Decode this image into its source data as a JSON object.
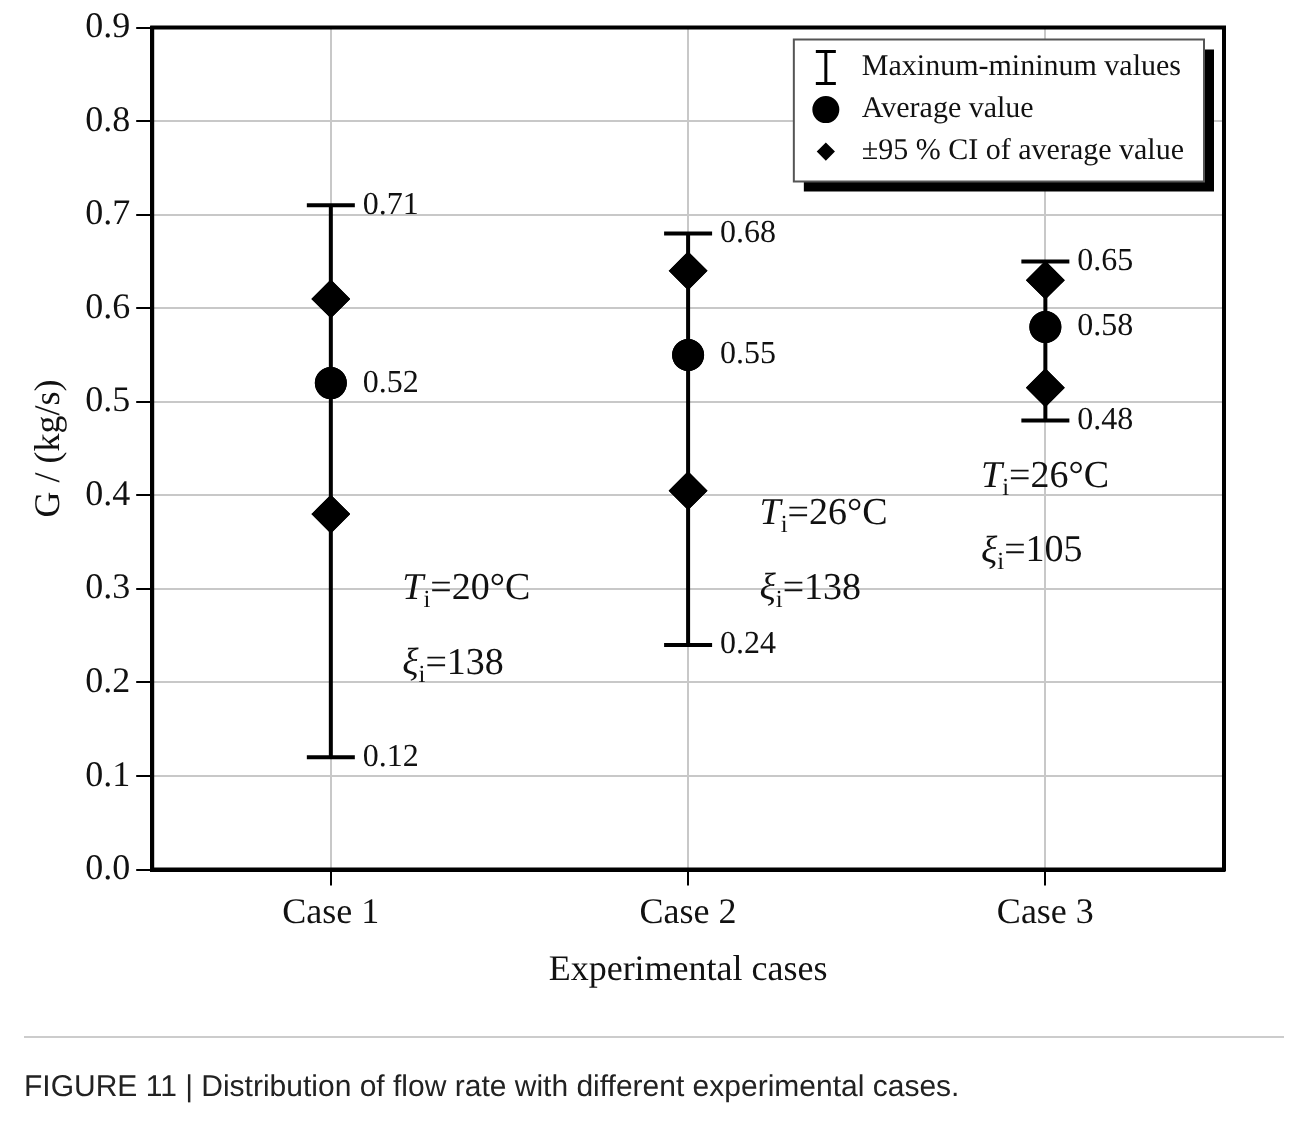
{
  "chart_data": {
    "type": "scatter",
    "xlabel": "Experimental cases",
    "ylabel": "G / (kg/s)",
    "categories": [
      "Case 1",
      "Case 2",
      "Case 3"
    ],
    "ylim": [
      0,
      0.9
    ],
    "yticks": [
      {
        "value": 0,
        "label": "0.0"
      },
      0.1,
      0.2,
      0.3,
      0.4,
      0.5,
      0.6,
      0.7,
      0.8,
      0.9
    ],
    "grid": true,
    "legend": "top right",
    "series": [
      {
        "name": "Average value",
        "color": "#000000",
        "marker": "circle",
        "values": [
          0.52,
          0.55,
          0.58
        ],
        "errors": [
          [
            0.12,
            0.71
          ],
          [
            0.24,
            0.68
          ],
          [
            0.48,
            0.65
          ]
        ]
      },
      {
        "name": "±95 % CI of average value",
        "color": "#000000",
        "marker": "diamond",
        "x": [
          "Case 1",
          "Case 1",
          "Case 2",
          "Case 2",
          "Case 3",
          "Case 3"
        ],
        "values": [
          0.61,
          0.38,
          0.64,
          0.405,
          0.63,
          0.515
        ]
      }
    ],
    "annotations": [
      {
        "text": "0.71",
        "x": "Case 1",
        "y": 0.71
      },
      {
        "text": "0.52",
        "x": "Case 1",
        "y": 0.52
      },
      {
        "text": "0.12",
        "x": "Case 1",
        "y": 0.12
      },
      {
        "text": "0.68",
        "x": "Case 2",
        "y": 0.68
      },
      {
        "text": "0.55",
        "x": "Case 2",
        "y": 0.55
      },
      {
        "text": "0.24",
        "x": "Case 2",
        "y": 0.24
      },
      {
        "text": "0.65",
        "x": "Case 3",
        "y": 0.65
      },
      {
        "text": "0.58",
        "x": "Case 3",
        "y": 0.58
      },
      {
        "text": "0.48",
        "x": "Case 3",
        "y": 0.48
      },
      "Maxinum-mininum values",
      "T$_{i}$=20°C",
      "ξ$_{i}$=138",
      "T$_{i}$=26°C",
      "ξ$_{i}$=138",
      "T$_{i}$=26°C",
      "ξ$_{i}$=105",
      "FIGURE 11 | Distribution of flow rate with different experimental cases."
    ]
  }
}
